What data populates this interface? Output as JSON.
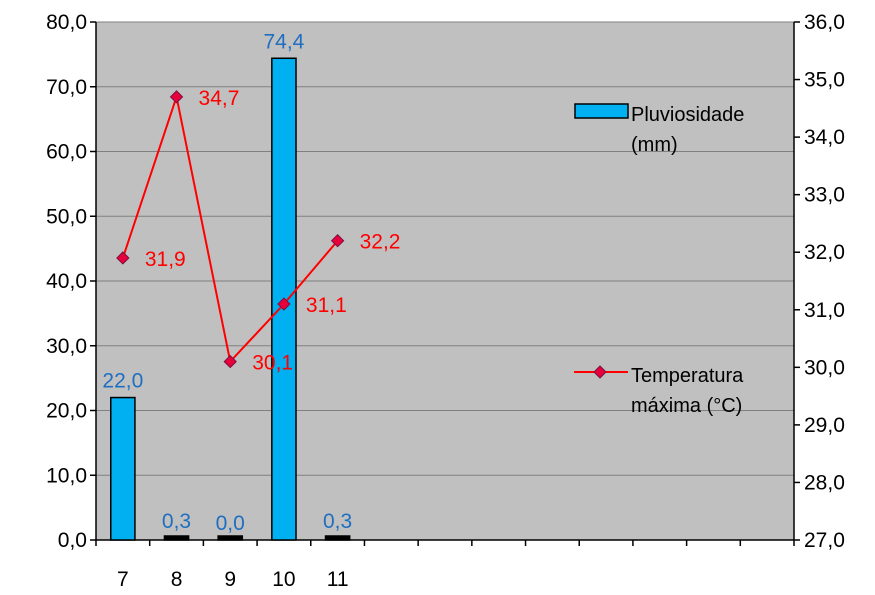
{
  "colors": {
    "plot_background": "#c0c0c0",
    "bar_fill": "#00b0f0",
    "bar_outline": "#000000",
    "bar_label": "#1f6fc0",
    "line": "#ff0000",
    "marker": "#e8003c",
    "gridline": "#808080"
  },
  "chart_data": {
    "type": "bar",
    "title": "",
    "xlabel": "",
    "categories": [
      "7",
      "8",
      "9",
      "10",
      "11"
    ],
    "x_axis_slots": 13,
    "grid": true,
    "left_axis": {
      "ylim": [
        0,
        80
      ],
      "ticks": [
        0,
        10,
        20,
        30,
        40,
        50,
        60,
        70,
        80
      ],
      "tick_labels": [
        "0,0",
        "10,0",
        "20,0",
        "30,0",
        "40,0",
        "50,0",
        "60,0",
        "70,0",
        "80,0"
      ]
    },
    "right_axis": {
      "ylim": [
        27,
        36
      ],
      "ticks": [
        27,
        28,
        29,
        30,
        31,
        32,
        33,
        34,
        35,
        36
      ],
      "tick_labels": [
        "27,0",
        "28,0",
        "29,0",
        "30,0",
        "31,0",
        "32,0",
        "33,0",
        "34,0",
        "35,0",
        "36,0"
      ]
    },
    "series": [
      {
        "name": "Pluviosidade (mm)",
        "legend_lines": [
          "Pluviosidade",
          "(mm)"
        ],
        "type": "bar",
        "axis": "left",
        "values": [
          22.0,
          0.3,
          0.0,
          74.4,
          0.3
        ],
        "labels": [
          "22,0",
          "0,3",
          "0,0",
          "74,4",
          "0,3"
        ]
      },
      {
        "name": "Temperatura máxima (°C)",
        "legend_lines": [
          "Temperatura",
          "máxima (°C)"
        ],
        "type": "line",
        "axis": "right",
        "marker": "diamond",
        "values": [
          31.9,
          34.7,
          30.1,
          31.1,
          32.2
        ],
        "labels": [
          "31,9",
          "34,7",
          "30,1",
          "31,1",
          "32,2"
        ]
      }
    ],
    "legend": "right"
  }
}
